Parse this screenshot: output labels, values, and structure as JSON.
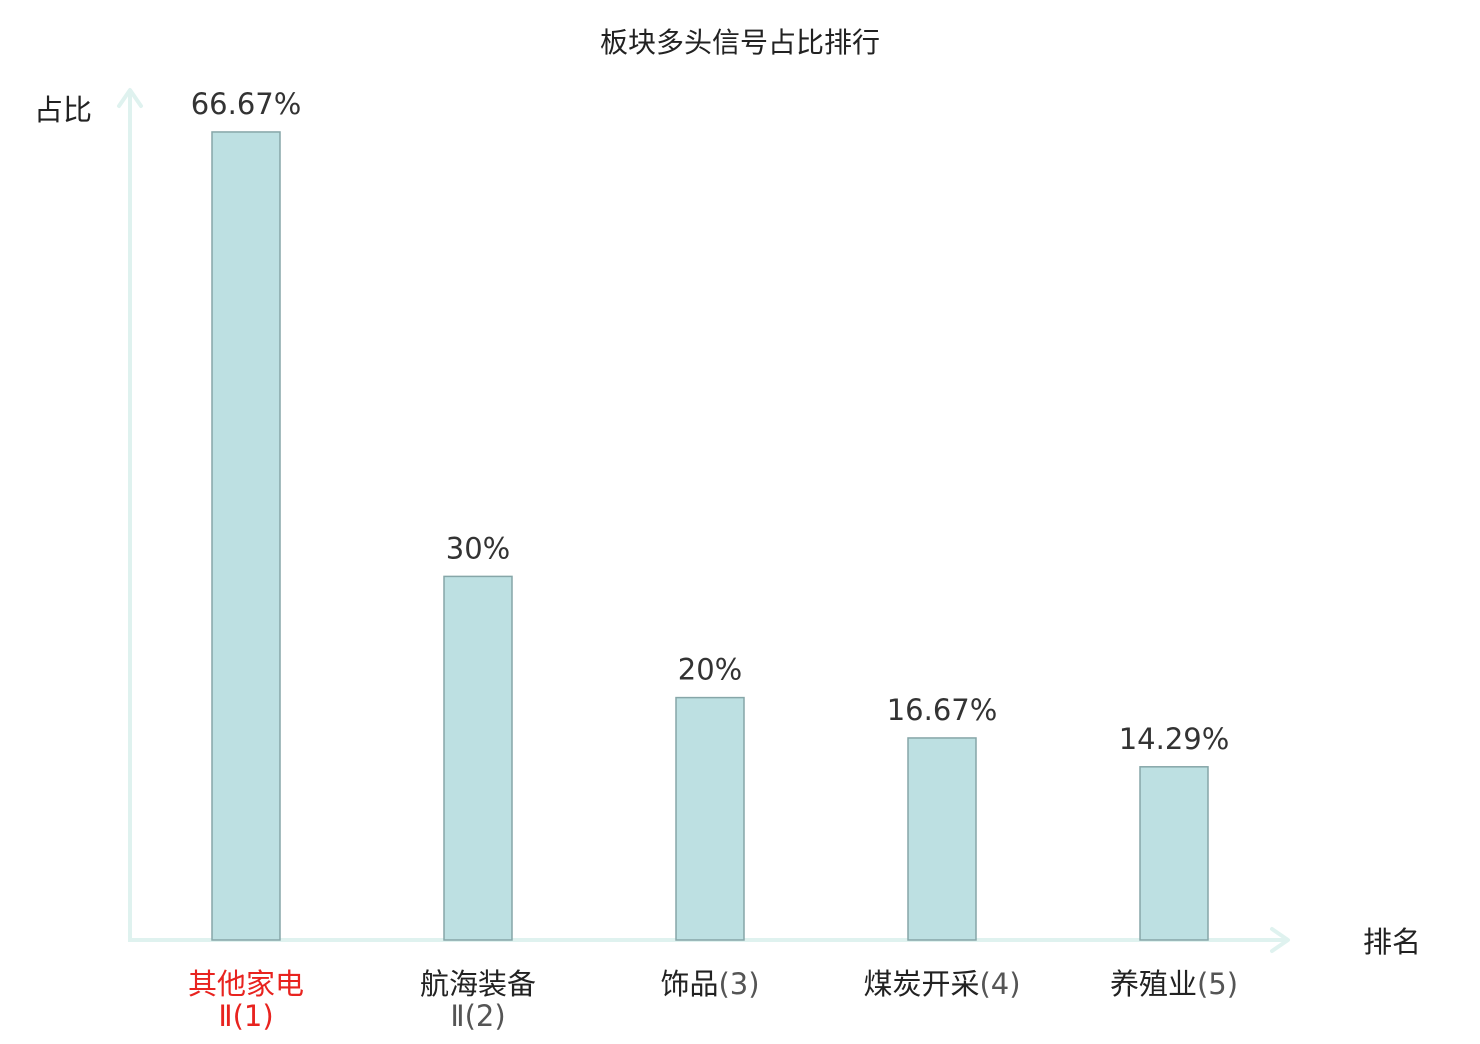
{
  "chart_data": {
    "type": "bar",
    "title": "板块多头信号占比排行",
    "xlabel": "排名",
    "ylabel": "占比",
    "ylim": [
      0,
      70
    ],
    "grid": false,
    "legend": "none",
    "categories": [
      {
        "name": "其他家电",
        "rank": "Ⅱ(1)",
        "highlight": true
      },
      {
        "name": "航海装备",
        "rank": "Ⅱ(2)",
        "highlight": false
      },
      {
        "name": "饰品",
        "rank": "(3)",
        "highlight": false
      },
      {
        "name": "煤炭开采",
        "rank": "(4)",
        "highlight": false
      },
      {
        "name": "养殖业",
        "rank": "(5)",
        "highlight": false
      }
    ],
    "values": [
      66.67,
      30,
      20,
      16.67,
      14.29
    ],
    "value_labels": [
      "66.67%",
      "30%",
      "20%",
      "16.67%",
      "14.29%"
    ]
  },
  "colors": {
    "bar_fill": "#bde0e2",
    "bar_stroke": "#86a6a8",
    "axis": "#dff2ef",
    "highlight_text": "#e8231f",
    "normal_text": "#222222",
    "rank_text": "#555555",
    "value_text": "#333333"
  }
}
